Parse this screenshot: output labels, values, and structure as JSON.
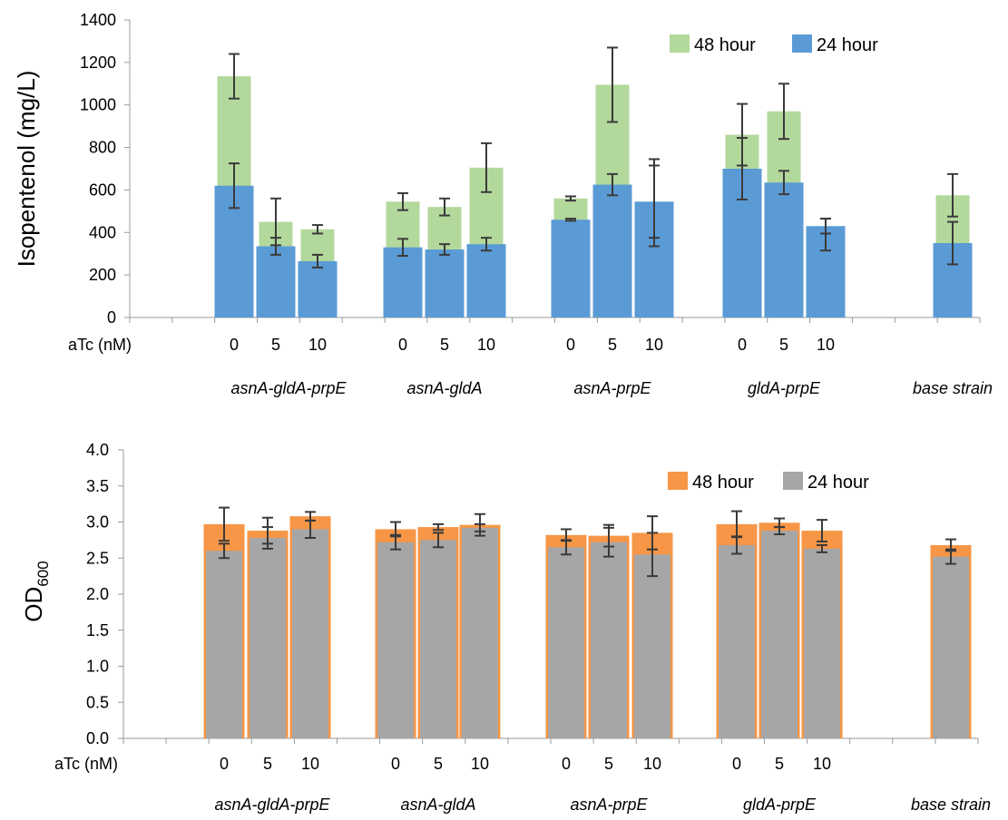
{
  "chart_data": [
    {
      "type": "bar",
      "ylabel": "Isopentenol (mg/L)",
      "ylim": [
        0,
        1400
      ],
      "yticks": [
        0,
        200,
        400,
        600,
        800,
        1000,
        1200,
        1400
      ],
      "x_axis_label": "aTc (nM)",
      "categories": [
        "0",
        "5",
        "10",
        "0",
        "5",
        "10",
        "0",
        "5",
        "10",
        "0",
        "5",
        "10",
        ""
      ],
      "groups": [
        {
          "name": "asnA-gldA-prpE",
          "categories": [
            "0",
            "5",
            "10"
          ]
        },
        {
          "name": "asnA-gldA",
          "categories": [
            "0",
            "5",
            "10"
          ]
        },
        {
          "name": "asnA-prpE",
          "categories": [
            "0",
            "5",
            "10"
          ]
        },
        {
          "name": "gldA-prpE",
          "categories": [
            "0",
            "5",
            "10"
          ]
        },
        {
          "name": "base strain",
          "categories": [
            ""
          ]
        }
      ],
      "legend_position": "top-right",
      "series": [
        {
          "name": "48 hour",
          "color": "#b3d89c",
          "values": [
            1135,
            450,
            415,
            545,
            520,
            705,
            560,
            1095,
            540,
            860,
            970,
            390,
            575
          ],
          "errors": [
            105,
            110,
            20,
            40,
            40,
            115,
            10,
            175,
            205,
            145,
            130,
            75,
            100
          ]
        },
        {
          "name": "24 hour",
          "color": "#5b9bd5",
          "highlight_color": "#7fb2f0",
          "values": [
            620,
            335,
            265,
            330,
            320,
            345,
            460,
            625,
            545,
            700,
            635,
            430,
            350
          ],
          "errors": [
            105,
            40,
            30,
            40,
            25,
            30,
            5,
            50,
            170,
            145,
            55,
            35,
            100
          ]
        }
      ]
    },
    {
      "type": "bar",
      "ylabel": "OD600",
      "ylabel_main": "OD",
      "ylabel_sub": "600",
      "ylim": [
        0,
        4.0
      ],
      "yticks": [
        "0.0",
        "0.5",
        "1.0",
        "1.5",
        "2.0",
        "2.5",
        "3.0",
        "3.5",
        "4.0"
      ],
      "x_axis_label": "aTc (nM)",
      "categories": [
        "0",
        "5",
        "10",
        "0",
        "5",
        "10",
        "0",
        "5",
        "10",
        "0",
        "5",
        "10",
        ""
      ],
      "groups": [
        {
          "name": "asnA-gldA-prpE",
          "categories": [
            "0",
            "5",
            "10"
          ]
        },
        {
          "name": "asnA-gldA",
          "categories": [
            "0",
            "5",
            "10"
          ]
        },
        {
          "name": "asnA-prpE",
          "categories": [
            "0",
            "5",
            "10"
          ]
        },
        {
          "name": "gldA-prpE",
          "categories": [
            "0",
            "5",
            "10"
          ]
        },
        {
          "name": "base strain",
          "categories": [
            ""
          ]
        }
      ],
      "legend_position": "top-right",
      "series": [
        {
          "name": "48 hour",
          "color": "#f79646",
          "values": [
            2.97,
            2.88,
            3.08,
            2.9,
            2.93,
            2.96,
            2.82,
            2.81,
            2.85,
            2.97,
            2.99,
            2.88,
            2.68
          ],
          "errors": [
            0.23,
            0.18,
            0.06,
            0.1,
            0.04,
            0.15,
            0.08,
            0.15,
            0.23,
            0.18,
            0.06,
            0.15,
            0.08
          ]
        },
        {
          "name": "24 hour",
          "color": "#a6a6a6",
          "values": [
            2.6,
            2.78,
            2.9,
            2.72,
            2.75,
            2.92,
            2.65,
            2.72,
            2.55,
            2.68,
            2.88,
            2.63,
            2.52
          ],
          "errors": [
            0.1,
            0.15,
            0.12,
            0.1,
            0.1,
            0.05,
            0.1,
            0.2,
            0.3,
            0.12,
            0.05,
            0.05,
            0.1
          ]
        }
      ]
    }
  ]
}
